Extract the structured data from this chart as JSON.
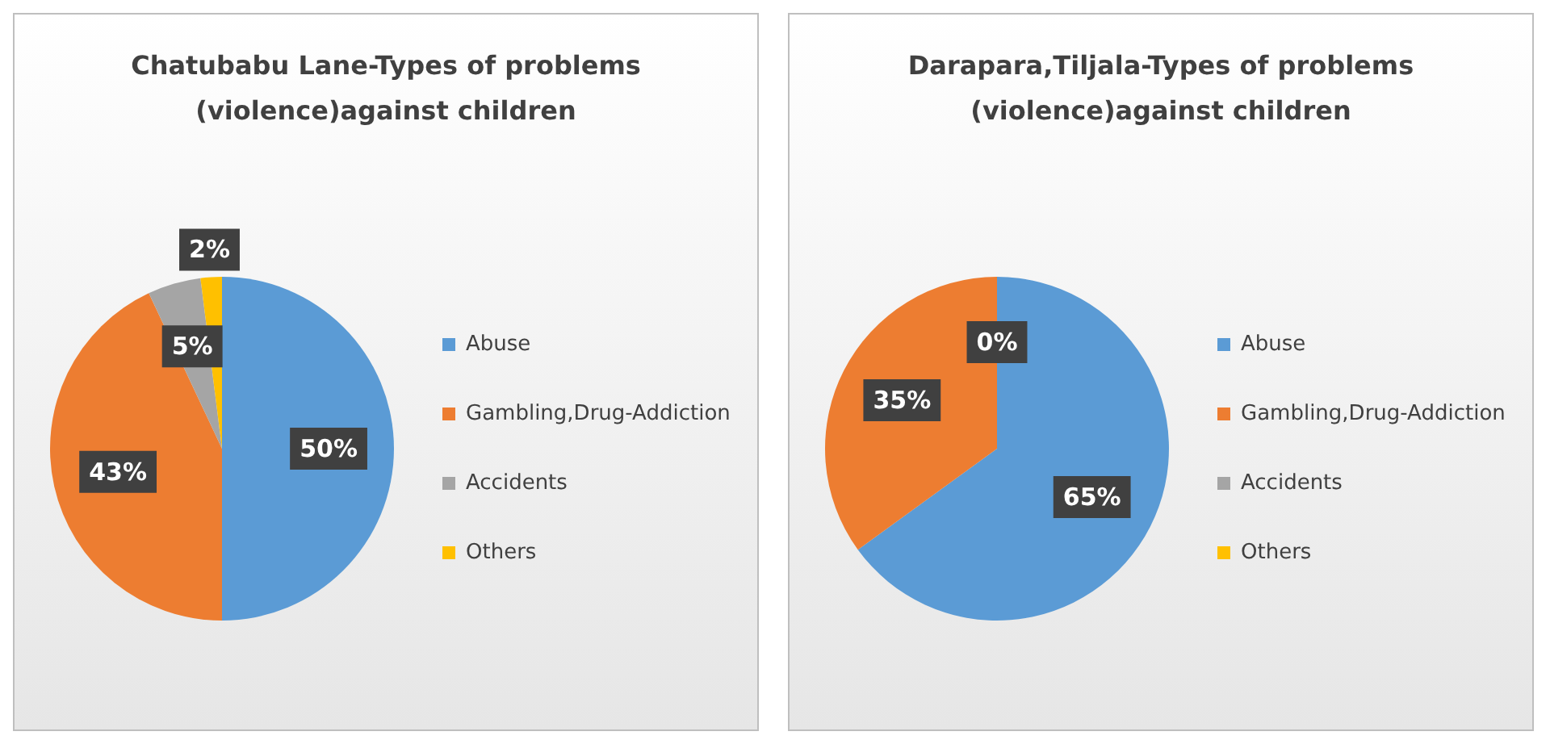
{
  "chart_data": [
    {
      "type": "pie",
      "title": "Chatubabu Lane-Types of problems (violence)against children",
      "categories": [
        "Abuse",
        "Gambling,Drug-Addiction",
        "Accidents",
        "Others"
      ],
      "values": [
        50,
        43,
        5,
        2
      ],
      "colors": [
        "#5b9bd5",
        "#ed7d31",
        "#a5a5a5",
        "#ffc000"
      ],
      "value_labels": [
        "50%",
        "43%",
        "5%",
        "2%"
      ],
      "legend": "right"
    },
    {
      "type": "pie",
      "title": "Darapara,Tiljala-Types of problems (violence)against children",
      "categories": [
        "Abuse",
        "Gambling,Drug-Addiction",
        "Accidents",
        "Others"
      ],
      "values": [
        65,
        35,
        0,
        0
      ],
      "colors": [
        "#5b9bd5",
        "#ed7d31",
        "#a5a5a5",
        "#ffc000"
      ],
      "value_labels": [
        "65%",
        "35%",
        "0%",
        null
      ],
      "legend": "right"
    }
  ]
}
